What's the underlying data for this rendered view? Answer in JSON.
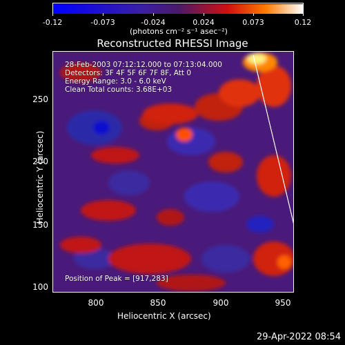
{
  "colorbar": {
    "ticks": [
      "-0.12",
      "-0.073",
      "-0.024",
      "0.024",
      "0.073",
      "0.12"
    ],
    "units": "(photons cm⁻² s⁻¹ asec⁻²)"
  },
  "title": "Reconstructed RHESSI Image",
  "info": {
    "line1": "28-Feb-2003 07:12:12.000 to 07:13:04.000",
    "line2": "Detectors: 3F 4F 5F 6F 7F 8F, Att 0",
    "line3": "Energy Range: 3.0 - 6.0 keV",
    "line4": "Clean    Total counts: 3.68E+03",
    "peak": "Position of Peak = [917,283]"
  },
  "axes": {
    "xlabel": "Heliocentric X (arcsec)",
    "ylabel": "Heliocentric Y (arcsec)",
    "xticks": [
      "800",
      "850",
      "900",
      "950"
    ],
    "yticks": [
      "100",
      "150",
      "200",
      "250"
    ]
  },
  "footer": "29-Apr-2022 08:54",
  "colors": {
    "negative": "#0000ff",
    "zero": "#5a2a9a",
    "positive_hot": "#ff2000",
    "peak": "#ffffe0"
  }
}
